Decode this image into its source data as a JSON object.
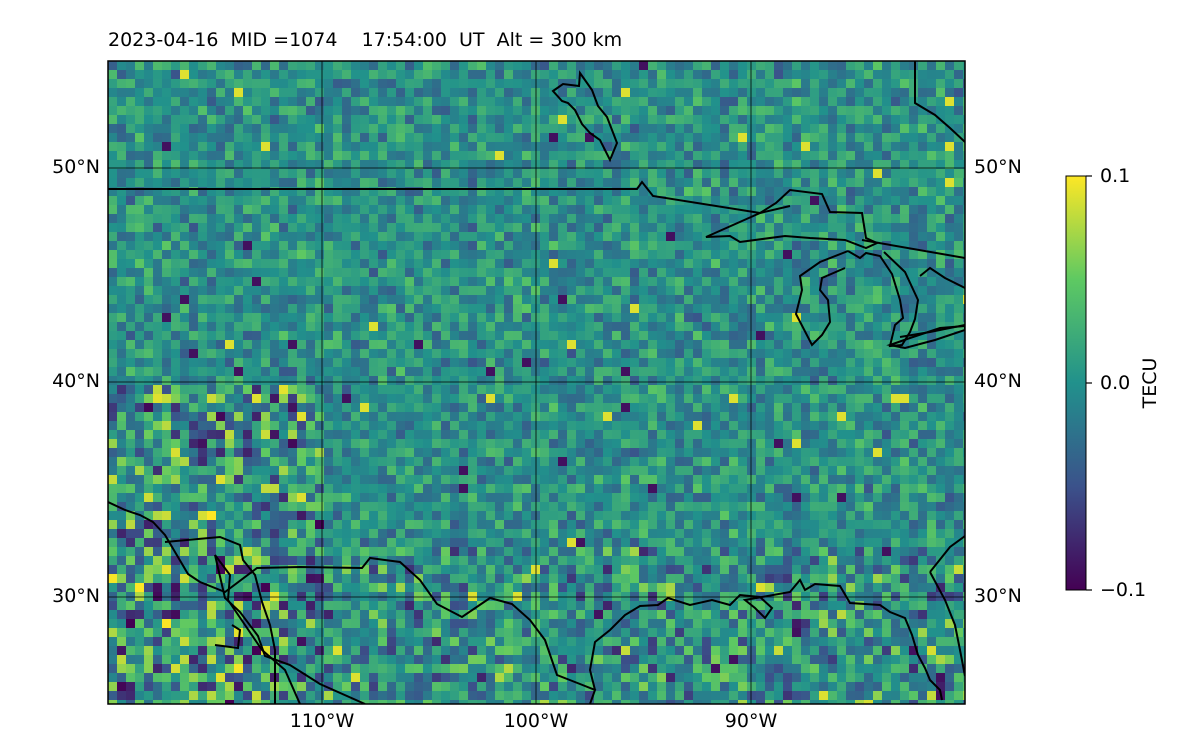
{
  "title": "2023-04-16  MID =1074    17:54:00  UT  Alt = 300 km",
  "map": {
    "lon_range": [
      -120,
      -80
    ],
    "lat_range": [
      25,
      55
    ],
    "lon_ticks": [
      {
        "value": -110,
        "label": "110°W"
      },
      {
        "value": -100,
        "label": "100°W"
      },
      {
        "value": -90,
        "label": "90°W"
      }
    ],
    "lat_ticks": [
      {
        "value": 50,
        "label": "50°N"
      },
      {
        "value": 40,
        "label": "40°N"
      },
      {
        "value": 30,
        "label": "30°N"
      }
    ],
    "field": "detrended TEC, viridis colormap"
  },
  "colorbar": {
    "label": "TECU",
    "min": -0.1,
    "max": 0.1,
    "ticks": [
      {
        "value": 0.1,
        "label": "0.1"
      },
      {
        "value": 0.0,
        "label": "0.0"
      },
      {
        "value": -0.1,
        "label": "−0.1"
      }
    ],
    "colormap": [
      "#440154",
      "#3b528b",
      "#21918c",
      "#5ec962",
      "#fde725"
    ]
  }
}
